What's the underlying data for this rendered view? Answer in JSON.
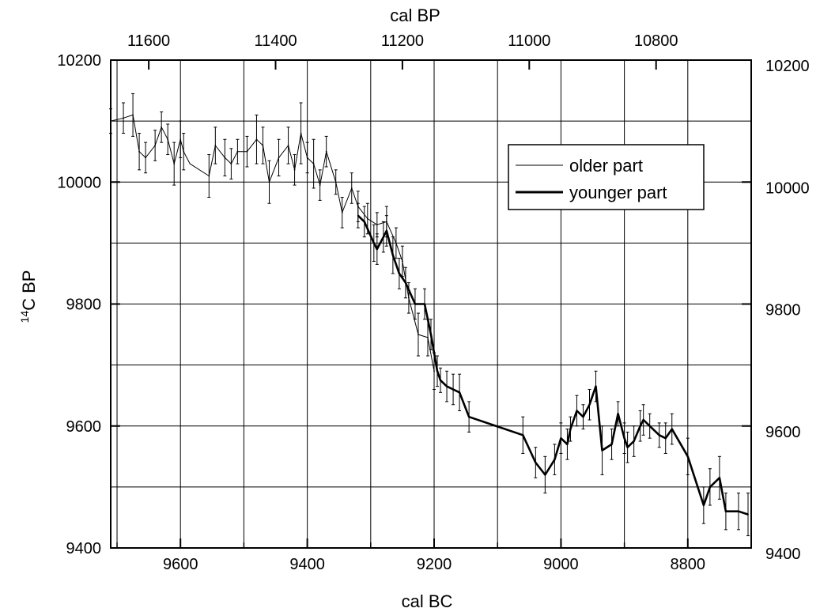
{
  "chart_data": {
    "type": "line",
    "xlabel": "cal BC",
    "x2label": "cal BP",
    "ylabel_sup": "14",
    "ylabel_main": "C BP",
    "xlim": [
      9710,
      8700
    ],
    "ylim": [
      9400,
      10200
    ],
    "x_ticks": [
      "9600",
      "9400",
      "9200",
      "9000",
      "8800"
    ],
    "x_tick_values": [
      9600,
      9400,
      9200,
      9000,
      8800
    ],
    "x2_ticks": [
      "11600",
      "11400",
      "11200",
      "11000",
      "10800"
    ],
    "x2_tick_values": [
      11600,
      11400,
      11200,
      11000,
      10800
    ],
    "y_ticks": [
      "9400",
      "9600",
      "9800",
      "10000",
      "10200"
    ],
    "y_tick_values": [
      9400,
      9600,
      9800,
      10000,
      10200
    ],
    "grid": true,
    "legend_position": "top-right",
    "series": [
      {
        "name": "older part",
        "style": "thin",
        "color": "#000000",
        "points": [
          [
            9710,
            10100,
            20
          ],
          [
            9690,
            10105,
            25
          ],
          [
            9675,
            10110,
            35
          ],
          [
            9665,
            10050,
            30
          ],
          [
            9655,
            10040,
            25
          ],
          [
            9640,
            10060,
            25
          ],
          [
            9630,
            10090,
            25
          ],
          [
            9620,
            10070,
            25
          ],
          [
            9610,
            10030,
            35
          ],
          [
            9600,
            10070,
            30
          ],
          [
            9595,
            10050,
            30
          ],
          [
            9585,
            10030,
            0
          ],
          [
            9555,
            10010,
            35
          ],
          [
            9545,
            10060,
            30
          ],
          [
            9530,
            10040,
            30
          ],
          [
            9520,
            10030,
            25
          ],
          [
            9510,
            10050,
            20
          ],
          [
            9495,
            10050,
            25
          ],
          [
            9480,
            10070,
            40
          ],
          [
            9470,
            10060,
            30
          ],
          [
            9460,
            10000,
            35
          ],
          [
            9445,
            10040,
            30
          ],
          [
            9430,
            10060,
            30
          ],
          [
            9420,
            10020,
            25
          ],
          [
            9410,
            10080,
            50
          ],
          [
            9400,
            10040,
            25
          ],
          [
            9390,
            10030,
            40
          ],
          [
            9380,
            9995,
            25
          ],
          [
            9370,
            10050,
            25
          ],
          [
            9355,
            10000,
            20
          ],
          [
            9345,
            9950,
            25
          ],
          [
            9330,
            9990,
            25
          ],
          [
            9320,
            9960,
            25
          ],
          [
            9305,
            9940,
            25
          ],
          [
            9290,
            9930,
            20
          ],
          [
            9275,
            9935,
            25
          ],
          [
            9260,
            9900,
            25
          ],
          [
            9250,
            9870,
            25
          ],
          [
            9240,
            9810,
            25
          ],
          [
            9225,
            9750,
            35
          ],
          [
            9210,
            9745,
            30
          ],
          [
            9200,
            9690,
            30
          ]
        ]
      },
      {
        "name": "younger part",
        "style": "thick",
        "color": "#000000",
        "points": [
          [
            9320,
            9945,
            20
          ],
          [
            9310,
            9935,
            25
          ],
          [
            9295,
            9900,
            30
          ],
          [
            9290,
            9890,
            25
          ],
          [
            9280,
            9910,
            25
          ],
          [
            9275,
            9920,
            25
          ],
          [
            9265,
            9880,
            30
          ],
          [
            9255,
            9850,
            25
          ],
          [
            9245,
            9835,
            25
          ],
          [
            9230,
            9800,
            25
          ],
          [
            9215,
            9800,
            25
          ],
          [
            9205,
            9750,
            25
          ],
          [
            9195,
            9690,
            25
          ],
          [
            9190,
            9675,
            20
          ],
          [
            9180,
            9665,
            25
          ],
          [
            9170,
            9660,
            25
          ],
          [
            9160,
            9655,
            30
          ],
          [
            9145,
            9615,
            25
          ],
          [
            9060,
            9585,
            30
          ],
          [
            9040,
            9540,
            25
          ],
          [
            9025,
            9520,
            30
          ],
          [
            9010,
            9545,
            25
          ],
          [
            9000,
            9580,
            25
          ],
          [
            8990,
            9570,
            25
          ],
          [
            8985,
            9595,
            20
          ],
          [
            8975,
            9625,
            25
          ],
          [
            8965,
            9615,
            20
          ],
          [
            8955,
            9635,
            25
          ],
          [
            8945,
            9665,
            25
          ],
          [
            8935,
            9560,
            40
          ],
          [
            8920,
            9570,
            25
          ],
          [
            8910,
            9620,
            20
          ],
          [
            8900,
            9580,
            25
          ],
          [
            8895,
            9565,
            25
          ],
          [
            8885,
            9575,
            25
          ],
          [
            8875,
            9600,
            25
          ],
          [
            8870,
            9610,
            25
          ],
          [
            8860,
            9600,
            20
          ],
          [
            8845,
            9585,
            20
          ],
          [
            8835,
            9580,
            25
          ],
          [
            8825,
            9595,
            25
          ],
          [
            8800,
            9550,
            30
          ],
          [
            8775,
            9470,
            30
          ],
          [
            8765,
            9500,
            30
          ],
          [
            8750,
            9515,
            35
          ],
          [
            8740,
            9460,
            30
          ],
          [
            8720,
            9460,
            30
          ],
          [
            8705,
            9455,
            35
          ]
        ]
      }
    ]
  }
}
